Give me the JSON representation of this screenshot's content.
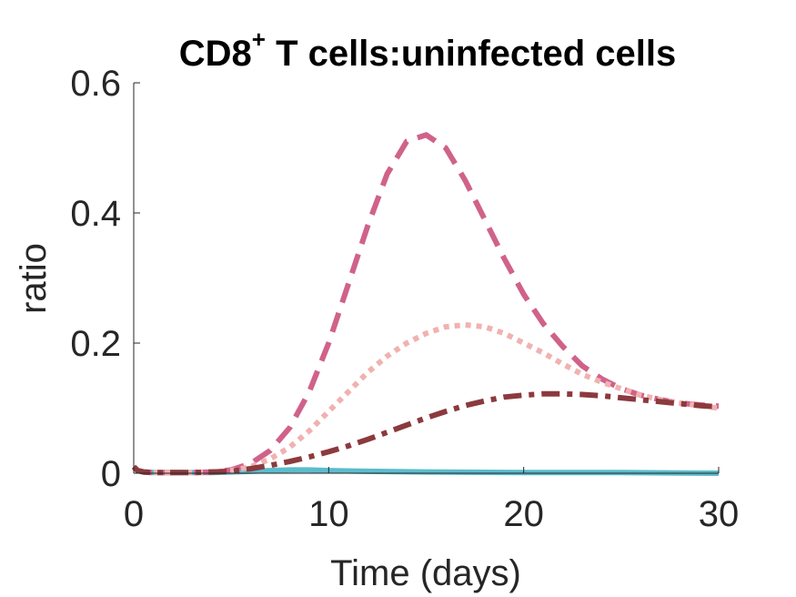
{
  "chart_data": {
    "type": "line",
    "title": "CD8",
    "title_superscript": "+",
    "title_suffix": " T cells:uninfected cells",
    "xlabel": "Time (days)",
    "ylabel": "ratio",
    "xlim": [
      0,
      30
    ],
    "ylim": [
      0,
      0.6
    ],
    "xticks": [
      0,
      10,
      20,
      30
    ],
    "xtick_labels": [
      "0",
      "10",
      "20",
      "30"
    ],
    "yticks": [
      0,
      0.2,
      0.4,
      0.6
    ],
    "ytick_labels": [
      "0",
      "0.2",
      "0.4",
      "0.6"
    ],
    "grid": false,
    "series": [
      {
        "style": "solid",
        "color": "#5bbccc",
        "x": [
          0,
          0.2,
          0.5,
          1,
          2,
          3,
          4,
          5,
          6,
          7,
          8,
          9,
          10,
          12,
          15,
          20,
          25,
          30
        ],
        "y": [
          0.01,
          0.004,
          0.002,
          0.001,
          0.001,
          0.001,
          0.001,
          0.002,
          0.003,
          0.004,
          0.005,
          0.005,
          0.004,
          0.003,
          0.002,
          0.001,
          0.001,
          0.0
        ]
      },
      {
        "style": "dashed",
        "color": "#d0628a",
        "x": [
          0,
          0.2,
          0.5,
          1,
          2,
          3,
          4,
          5,
          6,
          7,
          8,
          9,
          10,
          11,
          12,
          13,
          14,
          15,
          16,
          17,
          18,
          19,
          20,
          21,
          22,
          23,
          24,
          25,
          26,
          27,
          28,
          29,
          30
        ],
        "y": [
          0.01,
          0.004,
          0.002,
          0.001,
          0.001,
          0.001,
          0.002,
          0.005,
          0.015,
          0.035,
          0.07,
          0.125,
          0.2,
          0.29,
          0.38,
          0.46,
          0.51,
          0.52,
          0.5,
          0.45,
          0.39,
          0.33,
          0.275,
          0.23,
          0.195,
          0.165,
          0.145,
          0.13,
          0.12,
          0.113,
          0.108,
          0.105,
          0.103
        ]
      },
      {
        "style": "dotted",
        "color": "#f0b2b0",
        "x": [
          0,
          0.2,
          0.5,
          1,
          2,
          3,
          4,
          5,
          6,
          7,
          8,
          9,
          10,
          11,
          12,
          13,
          14,
          15,
          16,
          17,
          18,
          19,
          20,
          21,
          22,
          23,
          24,
          25,
          26,
          27,
          28,
          29,
          30
        ],
        "y": [
          0.01,
          0.004,
          0.002,
          0.001,
          0.001,
          0.001,
          0.002,
          0.004,
          0.01,
          0.022,
          0.04,
          0.065,
          0.095,
          0.125,
          0.155,
          0.18,
          0.2,
          0.215,
          0.225,
          0.228,
          0.225,
          0.215,
          0.2,
          0.185,
          0.168,
          0.152,
          0.14,
          0.13,
          0.12,
          0.113,
          0.108,
          0.104,
          0.1
        ]
      },
      {
        "style": "dashdot",
        "color": "#8b3a3e",
        "x": [
          0,
          0.2,
          0.5,
          1,
          2,
          3,
          4,
          5,
          6,
          7,
          8,
          9,
          10,
          11,
          12,
          13,
          14,
          15,
          16,
          17,
          18,
          19,
          20,
          21,
          22,
          23,
          24,
          25,
          26,
          27,
          28,
          29,
          30
        ],
        "y": [
          0.01,
          0.004,
          0.002,
          0.001,
          0.001,
          0.001,
          0.002,
          0.003,
          0.007,
          0.012,
          0.018,
          0.025,
          0.033,
          0.042,
          0.052,
          0.063,
          0.074,
          0.085,
          0.095,
          0.104,
          0.111,
          0.117,
          0.12,
          0.122,
          0.122,
          0.121,
          0.119,
          0.116,
          0.113,
          0.11,
          0.107,
          0.104,
          0.102
        ]
      }
    ]
  }
}
